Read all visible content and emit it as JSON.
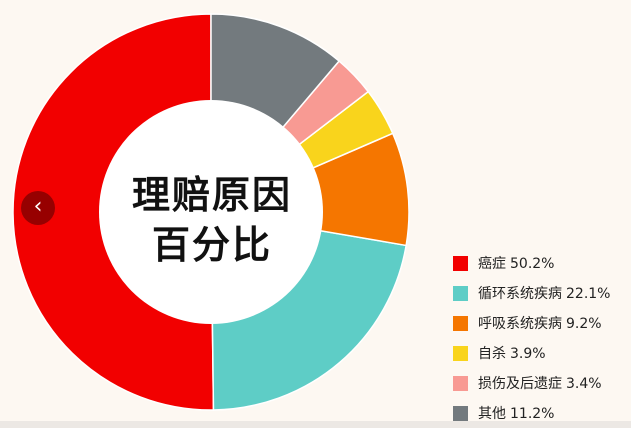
{
  "chart_data": {
    "type": "pie",
    "title": "理赔原因百分比",
    "title_lines": [
      "理赔原因",
      "百分比"
    ],
    "categories": [
      "癌症",
      "循环系统疾病",
      "呼吸系统疾病",
      "自杀",
      "损伤及后遗症",
      "其他"
    ],
    "values": [
      50.2,
      22.1,
      9.2,
      3.9,
      3.4,
      11.2
    ],
    "value_labels": [
      "50.2%",
      "22.1%",
      "9.2%",
      "3.9%",
      "3.4%",
      "11.2%"
    ],
    "colors": [
      "#f20000",
      "#5ecdc6",
      "#f57600",
      "#f9d41c",
      "#f89a93",
      "#737a7e"
    ],
    "legend_position": "bottom-right",
    "donut": true
  },
  "nav": {
    "prev_icon": "chevron-left-icon",
    "prev_glyph": "‹"
  }
}
